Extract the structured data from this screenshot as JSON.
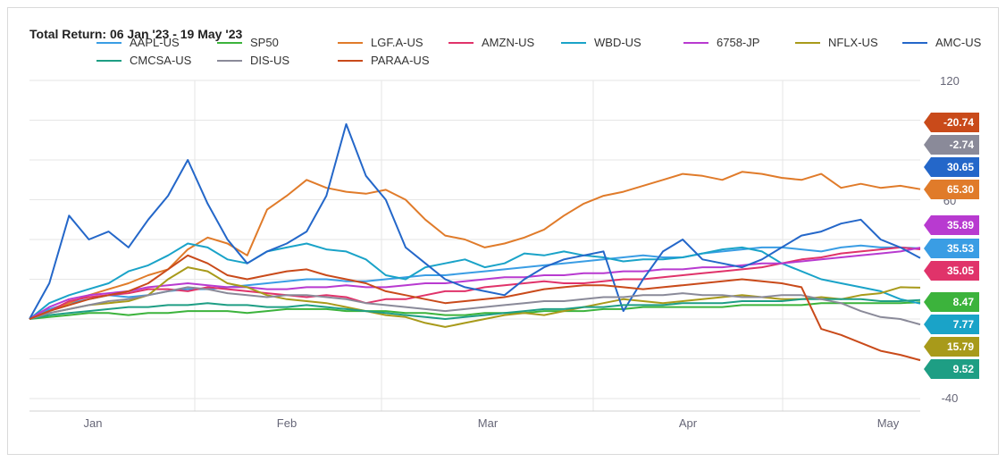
{
  "title": "Total Return: 06 Jan '23 - 19 May '23",
  "chart_data": {
    "type": "line",
    "title": "Total Return: 06 Jan '23 - 19 May '23",
    "xlabel": "",
    "ylabel": "",
    "x_ticks": [
      "Jan",
      "Feb",
      "Mar",
      "Apr",
      "May"
    ],
    "y_ticks": [
      120,
      60,
      -40
    ],
    "ylim": [
      -40,
      120
    ],
    "grid": true,
    "legend_position": "top",
    "series": [
      {
        "name": "AAPL-US",
        "color": "#3a9de4",
        "end_label": "35.53",
        "values": [
          0,
          5,
          8,
          10,
          12,
          11,
          12,
          14,
          15,
          15,
          16,
          17,
          18,
          19,
          20,
          20,
          19,
          19,
          20,
          21,
          22,
          22,
          23,
          24,
          25,
          26,
          27,
          28,
          29,
          30,
          31,
          32,
          31,
          31,
          33,
          34,
          35,
          36,
          36,
          35,
          34,
          36,
          37,
          36,
          36,
          35.53
        ]
      },
      {
        "name": "SP50",
        "color": "#3cb33c",
        "end_label": "8.47",
        "values": [
          0,
          1,
          2,
          3,
          3,
          2,
          3,
          3,
          4,
          4,
          4,
          3,
          4,
          5,
          5,
          5,
          4,
          4,
          4,
          3,
          3,
          2,
          2,
          3,
          3,
          3,
          4,
          4,
          4,
          5,
          5,
          6,
          6,
          6,
          6,
          6,
          7,
          7,
          7,
          7,
          8,
          8,
          8,
          8,
          8,
          8.47
        ]
      },
      {
        "name": "LGF.A-US",
        "color": "#e07b2a",
        "end_label": "65.30",
        "values": [
          0,
          4,
          8,
          12,
          15,
          18,
          22,
          25,
          35,
          41,
          38,
          32,
          55,
          62,
          70,
          66,
          64,
          63,
          65,
          60,
          50,
          42,
          40,
          36,
          38,
          41,
          45,
          52,
          58,
          62,
          64,
          67,
          70,
          73,
          72,
          70,
          74,
          73,
          71,
          70,
          73,
          66,
          68,
          66,
          67,
          65.3
        ]
      },
      {
        "name": "AMZN-US",
        "color": "#e0336a",
        "end_label": "35.05",
        "values": [
          0,
          4,
          9,
          11,
          12,
          13,
          15,
          15,
          14,
          16,
          15,
          14,
          13,
          12,
          11,
          12,
          11,
          8,
          10,
          10,
          12,
          14,
          14,
          16,
          17,
          18,
          19,
          18,
          18,
          19,
          20,
          20,
          21,
          22,
          23,
          24,
          25,
          26,
          28,
          30,
          31,
          33,
          34,
          35,
          36,
          35.05
        ]
      },
      {
        "name": "WBD-US",
        "color": "#1aa3c8",
        "end_label": "7.77",
        "values": [
          0,
          8,
          12,
          15,
          18,
          24,
          27,
          32,
          38,
          36,
          30,
          28,
          34,
          36,
          38,
          35,
          34,
          30,
          22,
          20,
          26,
          28,
          30,
          26,
          28,
          33,
          32,
          34,
          32,
          31,
          29,
          30,
          30,
          31,
          33,
          35,
          36,
          34,
          28,
          24,
          20,
          18,
          16,
          14,
          10,
          7.77
        ]
      },
      {
        "name": "6758-JP",
        "color": "#b83ad0",
        "end_label": "35.89",
        "values": [
          0,
          6,
          10,
          12,
          13,
          14,
          16,
          17,
          18,
          17,
          16,
          16,
          15,
          15,
          16,
          16,
          17,
          16,
          16,
          17,
          18,
          18,
          19,
          20,
          21,
          21,
          22,
          22,
          23,
          23,
          24,
          24,
          25,
          25,
          26,
          26,
          27,
          28,
          28,
          29,
          30,
          31,
          32,
          33,
          34,
          35.89
        ]
      },
      {
        "name": "NFLX-US",
        "color": "#a89a1a",
        "end_label": "15.79",
        "values": [
          0,
          3,
          5,
          7,
          8,
          9,
          12,
          20,
          26,
          24,
          18,
          16,
          12,
          10,
          9,
          8,
          6,
          4,
          2,
          1,
          -2,
          -4,
          -2,
          0,
          2,
          3,
          2,
          4,
          6,
          8,
          10,
          9,
          8,
          9,
          10,
          11,
          12,
          11,
          10,
          10,
          11,
          10,
          12,
          13,
          16,
          15.79
        ]
      },
      {
        "name": "AMC-US",
        "color": "#2467c9",
        "end_label": "30.65",
        "values": [
          0,
          18,
          52,
          40,
          44,
          36,
          50,
          62,
          80,
          58,
          40,
          28,
          34,
          38,
          44,
          62,
          98,
          72,
          60,
          36,
          28,
          20,
          16,
          14,
          12,
          20,
          26,
          30,
          32,
          34,
          4,
          20,
          34,
          40,
          30,
          28,
          26,
          30,
          36,
          42,
          44,
          48,
          50,
          40,
          36,
          30.65
        ]
      },
      {
        "name": "CMCSA-US",
        "color": "#1e9e84",
        "end_label": "9.52",
        "values": [
          0,
          2,
          3,
          4,
          5,
          6,
          6,
          7,
          7,
          8,
          7,
          7,
          6,
          6,
          7,
          6,
          5,
          4,
          3,
          2,
          1,
          0,
          1,
          2,
          3,
          4,
          5,
          5,
          6,
          6,
          7,
          7,
          7,
          8,
          8,
          8,
          9,
          9,
          9,
          10,
          10,
          10,
          10,
          9,
          9,
          9.52
        ]
      },
      {
        "name": "DIS-US",
        "color": "#8a8a99",
        "end_label": "-2.74",
        "values": [
          0,
          3,
          5,
          7,
          9,
          10,
          12,
          14,
          16,
          15,
          13,
          12,
          11,
          12,
          12,
          11,
          10,
          8,
          7,
          6,
          5,
          4,
          5,
          6,
          7,
          8,
          9,
          9,
          10,
          11,
          11,
          12,
          12,
          13,
          12,
          12,
          11,
          11,
          12,
          12,
          10,
          8,
          4,
          1,
          0,
          -2.74
        ]
      },
      {
        "name": "PARAA-US",
        "color": "#c94a1a",
        "end_label": "-20.74",
        "values": [
          0,
          4,
          7,
          10,
          12,
          14,
          18,
          25,
          32,
          28,
          22,
          20,
          22,
          24,
          25,
          22,
          20,
          18,
          14,
          12,
          10,
          8,
          9,
          10,
          11,
          13,
          15,
          16,
          17,
          17,
          16,
          15,
          16,
          17,
          18,
          19,
          20,
          19,
          18,
          16,
          -5,
          -8,
          -12,
          -16,
          -18,
          -20.74
        ]
      }
    ]
  },
  "badges": [
    {
      "text": "-20.74",
      "color": "#c94a1a"
    },
    {
      "text": "-2.74",
      "color": "#8a8a99"
    },
    {
      "text": "30.65",
      "color": "#2467c9"
    },
    {
      "text": "65.30",
      "color": "#e07b2a"
    },
    {
      "text": "35.89",
      "color": "#b83ad0"
    },
    {
      "text": "35.53",
      "color": "#3a9de4"
    },
    {
      "text": "35.05",
      "color": "#e0336a"
    },
    {
      "text": "8.47",
      "color": "#3cb33c"
    },
    {
      "text": "7.77",
      "color": "#1aa3c8"
    },
    {
      "text": "15.79",
      "color": "#a89a1a"
    },
    {
      "text": "9.52",
      "color": "#1e9e84"
    }
  ]
}
